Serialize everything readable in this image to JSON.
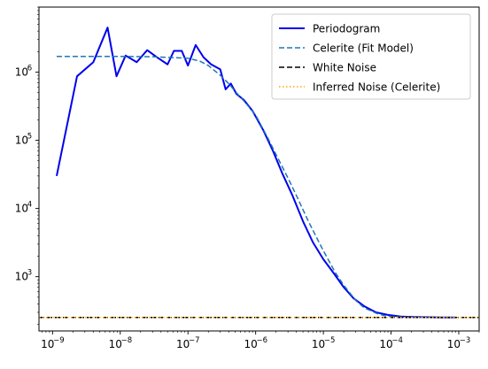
{
  "chart_data": {
    "type": "line",
    "xscale": "log",
    "yscale": "log",
    "xlim": [
      6.3e-10,
      0.002
    ],
    "ylim": [
      160,
      9000000
    ],
    "xticks": [
      {
        "value": 1e-09,
        "base": "10",
        "exp": "−9"
      },
      {
        "value": 1e-08,
        "base": "10",
        "exp": "−8"
      },
      {
        "value": 1e-07,
        "base": "10",
        "exp": "−7"
      },
      {
        "value": 1e-06,
        "base": "10",
        "exp": "−6"
      },
      {
        "value": 1e-05,
        "base": "10",
        "exp": "−5"
      },
      {
        "value": 0.0001,
        "base": "10",
        "exp": "−4"
      },
      {
        "value": 0.001,
        "base": "10",
        "exp": "−3"
      }
    ],
    "yticks": [
      {
        "value": 1000,
        "base": "10",
        "exp": "3"
      },
      {
        "value": 10000,
        "base": "10",
        "exp": "4"
      },
      {
        "value": 100000,
        "base": "10",
        "exp": "5"
      },
      {
        "value": 1000000,
        "base": "10",
        "exp": "6"
      }
    ],
    "legend_position": "top-right",
    "series": [
      {
        "name": "Periodogram",
        "color": "#0000ee",
        "style": "solid",
        "width": 2,
        "x": [
          1.15e-09,
          2.3e-09,
          4e-09,
          6.5e-09,
          8.8e-09,
          1.2e-08,
          1.75e-08,
          2.5e-08,
          3.5e-08,
          5e-08,
          6.2e-08,
          8.1e-08,
          1e-07,
          1.3e-07,
          1.7e-07,
          2.2e-07,
          3e-07,
          3.6e-07,
          4.3e-07,
          5.2e-07,
          6.7e-07,
          9e-07,
          1.3e-06,
          1.8e-06,
          2.5e-06,
          3.5e-06,
          5e-06,
          7e-06,
          1e-05,
          1.4e-05,
          2e-05,
          2.8e-05,
          4e-05,
          6e-05,
          9e-05,
          0.00014,
          0.00022,
          0.00035,
          0.00055,
          0.0009
        ],
        "y": [
          30000,
          870000,
          1400000,
          4500000,
          870000,
          1750000,
          1400000,
          2100000,
          1650000,
          1300000,
          2050000,
          2050000,
          1250000,
          2500000,
          1650000,
          1300000,
          1100000,
          560000,
          680000,
          480000,
          390000,
          270000,
          140000,
          70000,
          32000,
          15500,
          6500,
          3200,
          1800,
          1150,
          700,
          480,
          370,
          300,
          275,
          260,
          256,
          254,
          252,
          252
        ]
      },
      {
        "name": "Celerite (Fit Model)",
        "color": "#1f77b4",
        "style": "dashed",
        "width": 1.5,
        "x": [
          1.15e-09,
          3e-09,
          1e-08,
          3e-08,
          1e-07,
          1.5e-07,
          2e-07,
          3e-07,
          4e-07,
          5e-07,
          7e-07,
          1e-06,
          1.5e-06,
          2e-06,
          3e-06,
          4e-06,
          6e-06,
          8e-06,
          1e-05,
          1.5e-05,
          2e-05,
          3e-05,
          4e-05,
          6e-05,
          8e-05,
          0.0001,
          0.00015,
          0.0002,
          0.0003,
          0.0005,
          0.0009
        ],
        "y": [
          1700000,
          1700000,
          1700000,
          1680000,
          1600000,
          1450000,
          1250000,
          900000,
          680000,
          520000,
          360000,
          235000,
          110000,
          62000,
          28000,
          15500,
          6500,
          3700,
          2400,
          1150,
          750,
          450,
          350,
          292,
          268,
          260,
          255,
          254,
          253,
          252,
          252
        ]
      },
      {
        "name": "White Noise",
        "color": "#000000",
        "style": "dashed",
        "width": 1.5,
        "x": [
          6.3e-10,
          0.002
        ],
        "y": [
          252,
          252
        ]
      },
      {
        "name": "Inferred Noise (Celerite)",
        "color": "#ffa500",
        "style": "dotted",
        "width": 1.5,
        "x": [
          6.3e-10,
          0.002
        ],
        "y": [
          252,
          252
        ]
      }
    ]
  }
}
